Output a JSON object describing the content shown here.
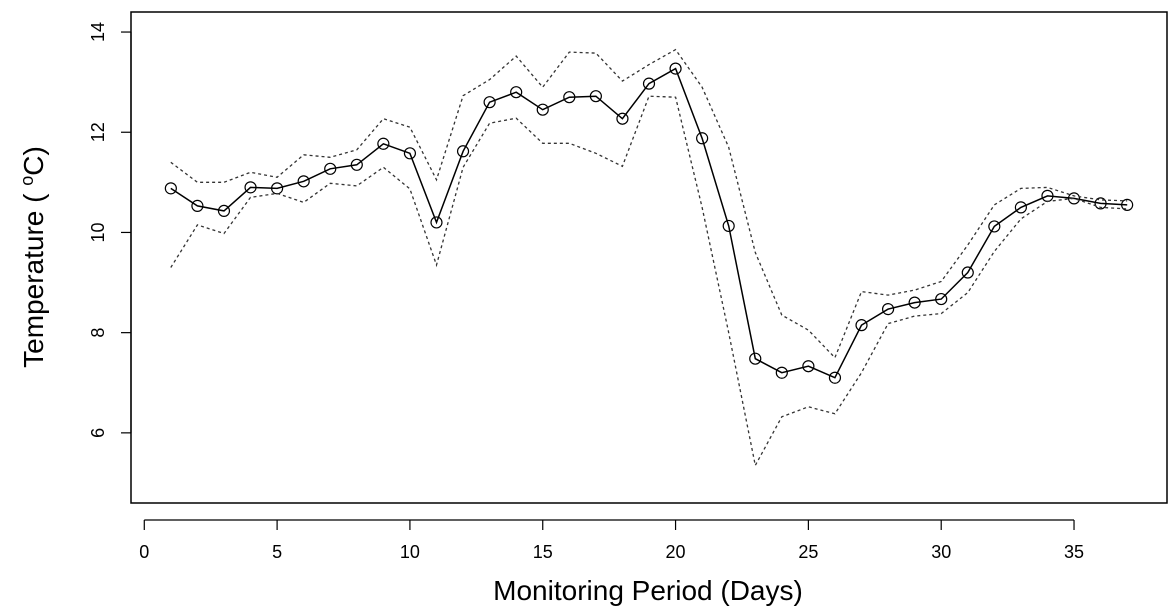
{
  "chart_data": {
    "type": "line",
    "xlabel": "Monitoring Period (Days)",
    "ylabel_main": "Temperature ( ",
    "ylabel_sup": "o",
    "ylabel_unit": "C)",
    "xlim": [
      -0.5,
      38.5
    ],
    "ylim": [
      4.6,
      14.4
    ],
    "xticks": [
      0,
      5,
      10,
      15,
      20,
      25,
      30,
      35
    ],
    "yticks": [
      6,
      8,
      10,
      12,
      14
    ],
    "x": [
      1,
      2,
      3,
      4,
      5,
      6,
      7,
      8,
      9,
      10,
      11,
      12,
      13,
      14,
      15,
      16,
      17,
      18,
      19,
      20,
      21,
      22,
      23,
      24,
      25,
      26,
      27,
      28,
      29,
      30,
      31,
      32,
      33,
      34,
      35,
      36,
      37
    ],
    "series": [
      {
        "role": "mean",
        "style": "solid",
        "markers": "open-circle",
        "values": [
          10.88,
          10.53,
          10.43,
          10.9,
          10.88,
          11.02,
          11.27,
          11.35,
          11.77,
          11.58,
          10.2,
          11.62,
          12.6,
          12.8,
          12.45,
          12.7,
          12.72,
          12.27,
          12.97,
          13.27,
          11.88,
          10.13,
          7.48,
          7.2,
          7.33,
          7.1,
          8.15,
          8.47,
          8.6,
          8.67,
          9.2,
          10.12,
          10.5,
          10.73,
          10.68,
          10.58,
          10.55
        ]
      },
      {
        "role": "upper",
        "style": "dotted",
        "values": [
          11.4,
          11.0,
          11.0,
          11.2,
          11.1,
          11.55,
          11.5,
          11.65,
          12.27,
          12.1,
          11.05,
          12.73,
          13.05,
          13.52,
          12.9,
          13.6,
          13.58,
          13.02,
          13.35,
          13.65,
          12.9,
          11.7,
          9.6,
          8.35,
          8.05,
          7.5,
          8.82,
          8.75,
          8.85,
          9.02,
          9.75,
          10.55,
          10.88,
          10.9,
          10.73,
          10.65,
          10.63
        ]
      },
      {
        "role": "lower",
        "style": "dotted",
        "values": [
          9.3,
          10.15,
          9.98,
          10.7,
          10.78,
          10.6,
          10.98,
          10.93,
          11.3,
          10.87,
          9.35,
          11.3,
          12.18,
          12.28,
          11.78,
          11.78,
          11.58,
          11.32,
          12.72,
          12.7,
          10.5,
          8.0,
          5.35,
          6.32,
          6.52,
          6.38,
          7.2,
          8.18,
          8.33,
          8.38,
          8.8,
          9.62,
          10.27,
          10.62,
          10.68,
          10.5,
          10.47
        ]
      }
    ]
  }
}
